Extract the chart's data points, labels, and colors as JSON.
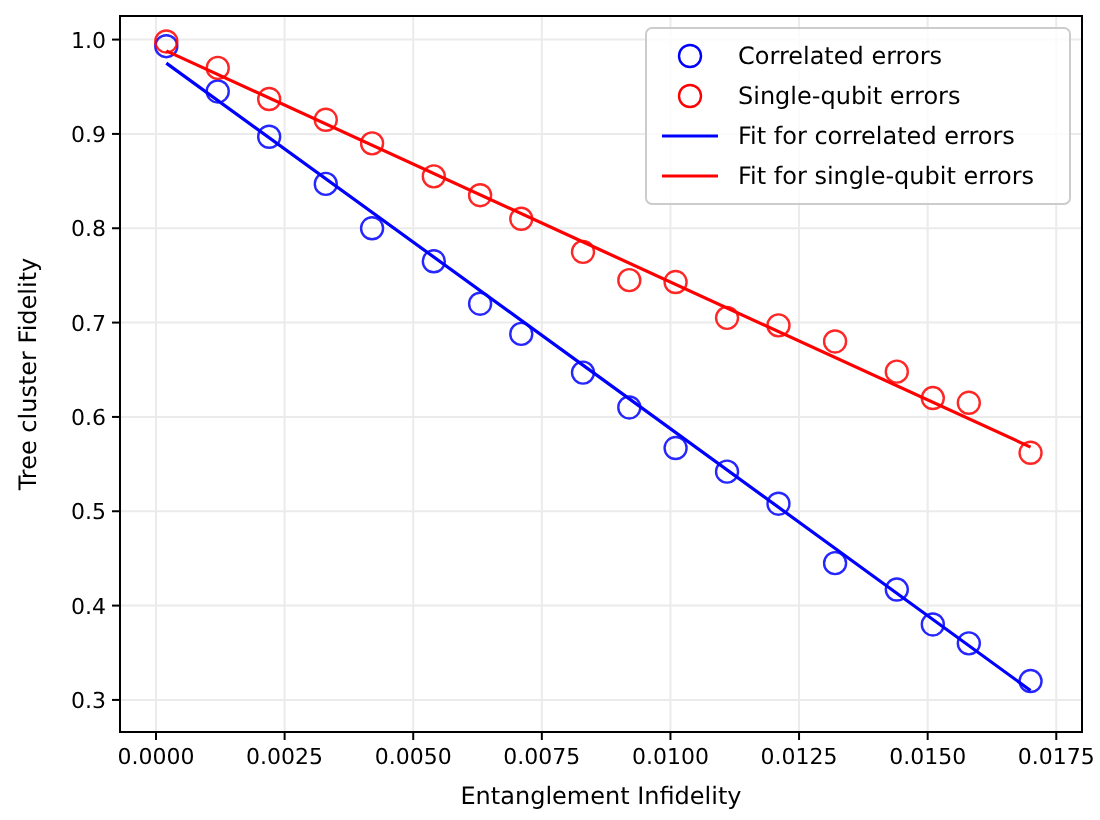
{
  "chart_data": {
    "type": "scatter",
    "xlabel": "Entanglement Infidelity",
    "ylabel": "Tree cluster Fidelity",
    "x": [
      0.0002,
      0.0012,
      0.0022,
      0.0033,
      0.0042,
      0.0054,
      0.0063,
      0.0071,
      0.0083,
      0.0092,
      0.0101,
      0.0111,
      0.0121,
      0.0132,
      0.0144,
      0.0151,
      0.0158,
      0.017
    ],
    "xlim": [
      -0.0007,
      0.018
    ],
    "ylim": [
      0.266,
      1.025
    ],
    "xticks": [
      {
        "value": 0,
        "label": "0.0000"
      },
      {
        "value": 0.0025,
        "label": "0.0025"
      },
      {
        "value": 0.005,
        "label": "0.0050"
      },
      {
        "value": 0.0075,
        "label": "0.0075"
      },
      {
        "value": 0.01,
        "label": "0.0100"
      },
      {
        "value": 0.0125,
        "label": "0.0125"
      },
      {
        "value": 0.015,
        "label": "0.0150"
      },
      {
        "value": 0.0175,
        "label": "0.0175"
      }
    ],
    "yticks": [
      0.3,
      0.4,
      0.5,
      0.6,
      0.7,
      0.8,
      0.9,
      {
        "value": 1,
        "label": "1.0"
      }
    ],
    "grid": true,
    "legend": "top right",
    "series": [
      {
        "name": "Correlated errors",
        "type": "scatter",
        "marker": "circle",
        "color": "#0000ff",
        "values": [
          0.993,
          0.945,
          0.897,
          0.847,
          0.8,
          0.765,
          0.72,
          0.688,
          0.647,
          0.61,
          0.567,
          0.542,
          0.508,
          0.445,
          0.417,
          0.38,
          0.36,
          0.32
        ]
      },
      {
        "name": "Single-qubit errors",
        "marker": "circle",
        "color": "#ff0000",
        "values": [
          0.998,
          0.97,
          0.937,
          0.915,
          0.89,
          0.855,
          0.835,
          0.81,
          0.775,
          0.745,
          0.743,
          0.705,
          0.697,
          0.68,
          0.648,
          0.62,
          0.615,
          0.562
        ]
      },
      {
        "name": "Fit for correlated errors",
        "type": "line",
        "marker": "none",
        "line_style": "solid",
        "color": "#0000ff",
        "x": [
          0.0002,
          0.0086,
          0.017
        ],
        "values": [
          0.975,
          0.643,
          0.31
        ]
      },
      {
        "name": "Fit for single-qubit errors",
        "type": "line",
        "marker": "none",
        "line_style": "solid",
        "color": "#ff0000",
        "x": [
          0.0002,
          0.0086,
          0.017
        ],
        "values": [
          0.988,
          0.778,
          0.568
        ]
      }
    ]
  }
}
